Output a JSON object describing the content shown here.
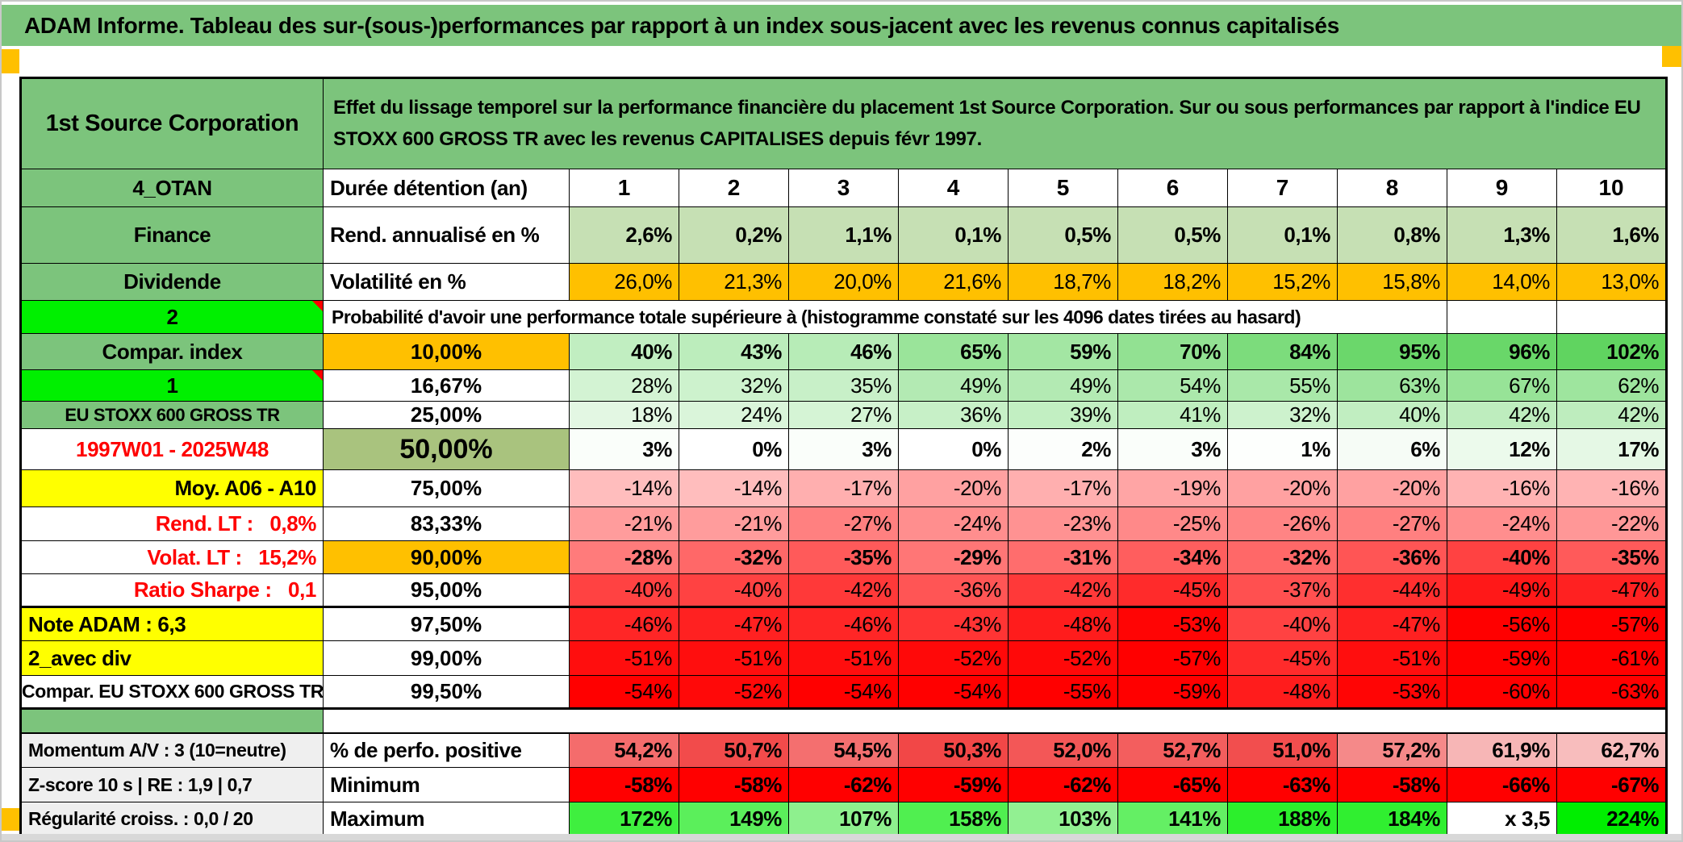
{
  "title": "ADAM Informe. Tableau des sur-(sous-)performances par rapport à un index sous-jacent avec les revenus connus capitalisés",
  "header": {
    "company": "1st Source Corporation",
    "description": "Effet du lissage temporel sur la performance financière du placement 1st Source Corporation. Sur ou sous performances par rapport à l'indice EU STOXX 600 GROSS TR avec les revenus CAPITALISES depuis févr 1997."
  },
  "rows": [
    {
      "id": "cols",
      "type": "header",
      "a": {
        "text": "4_OTAN",
        "bg": "green"
      },
      "b": {
        "text": "Durée détention (an)",
        "kind": "label"
      },
      "cells": [
        "1",
        "2",
        "3",
        "4",
        "5",
        "6",
        "7",
        "8",
        "9",
        "10"
      ]
    },
    {
      "id": "rend",
      "type": "lightgreen",
      "bold": true,
      "a": {
        "text": "Finance",
        "bg": "green"
      },
      "b": {
        "text": "Rend. annualisé en %",
        "kind": "label"
      },
      "cells": [
        "2,6%",
        "0,2%",
        "1,1%",
        "0,1%",
        "0,5%",
        "0,5%",
        "0,1%",
        "0,8%",
        "1,3%",
        "1,6%"
      ]
    },
    {
      "id": "vol",
      "type": "orange",
      "a": {
        "text": "Dividende",
        "bg": "green"
      },
      "b": {
        "text": "Volatilité en %",
        "kind": "label"
      },
      "cells": [
        "26,0%",
        "21,3%",
        "20,0%",
        "21,6%",
        "18,7%",
        "18,2%",
        "15,2%",
        "15,8%",
        "14,0%",
        "13,0%"
      ]
    },
    {
      "id": "prob",
      "a": {
        "text": "2",
        "bg": "bright",
        "marker": true
      },
      "merged": {
        "text": "Probabilité d'avoir une performance totale supérieure à (histogramme constaté sur les 4096 dates tirées au hasard)",
        "span": 9,
        "tail": 2
      }
    },
    {
      "id": "p10",
      "type": "scale",
      "bold": true,
      "a": {
        "text": "Compar. index",
        "bg": "green"
      },
      "b": {
        "text": "10,00%",
        "kind": "pct",
        "bg": "orange"
      },
      "cells": [
        "40%",
        "43%",
        "46%",
        "65%",
        "59%",
        "70%",
        "84%",
        "95%",
        "96%",
        "102%"
      ]
    },
    {
      "id": "p16",
      "type": "scale",
      "a": {
        "text": "1",
        "bg": "bright",
        "marker": true
      },
      "b": {
        "text": "16,67%",
        "kind": "pct"
      },
      "cells": [
        "28%",
        "32%",
        "35%",
        "49%",
        "49%",
        "54%",
        "55%",
        "63%",
        "67%",
        "62%"
      ]
    },
    {
      "id": "p25",
      "type": "scale",
      "a": {
        "text": "EU STOXX 600 GROSS TR",
        "bg": "green",
        "small": true
      },
      "b": {
        "text": "25,00%",
        "kind": "pct"
      },
      "cells": [
        "18%",
        "24%",
        "27%",
        "36%",
        "39%",
        "41%",
        "32%",
        "40%",
        "42%",
        "42%"
      ]
    },
    {
      "id": "p50",
      "type": "scale",
      "bold": true,
      "a": {
        "text": "1997W01 - 2025W48",
        "color": "red"
      },
      "b": {
        "text": "50,00%",
        "kind": "pct",
        "bg": "olive",
        "big": true
      },
      "cells": [
        "3%",
        "0%",
        "3%",
        "0%",
        "2%",
        "3%",
        "1%",
        "6%",
        "12%",
        "17%"
      ]
    },
    {
      "id": "p75",
      "type": "scale",
      "a": {
        "text": "Moy. A06 - A10",
        "bg": "yellow",
        "align": "right"
      },
      "b": {
        "text": "75,00%",
        "kind": "pct"
      },
      "cells": [
        "-14%",
        "-14%",
        "-17%",
        "-20%",
        "-17%",
        "-19%",
        "-20%",
        "-20%",
        "-16%",
        "-16%"
      ]
    },
    {
      "id": "p83",
      "type": "scale",
      "a": {
        "text": "Rend. LT :   0,8%",
        "color": "red",
        "align": "right"
      },
      "b": {
        "text": "83,33%",
        "kind": "pct"
      },
      "cells": [
        "-21%",
        "-21%",
        "-27%",
        "-24%",
        "-23%",
        "-25%",
        "-26%",
        "-27%",
        "-24%",
        "-22%"
      ]
    },
    {
      "id": "p90",
      "type": "scale",
      "bold": true,
      "a": {
        "text": "Volat. LT :   15,2%",
        "color": "red",
        "align": "right"
      },
      "b": {
        "text": "90,00%",
        "kind": "pct",
        "bg": "orange"
      },
      "cells": [
        "-28%",
        "-32%",
        "-35%",
        "-29%",
        "-31%",
        "-34%",
        "-32%",
        "-36%",
        "-40%",
        "-35%"
      ]
    },
    {
      "id": "p95",
      "type": "scale",
      "tb": true,
      "a": {
        "text": "Ratio Sharpe :   0,1",
        "color": "red",
        "align": "right"
      },
      "b": {
        "text": "95,00%",
        "kind": "pct"
      },
      "cells": [
        "-40%",
        "-40%",
        "-42%",
        "-36%",
        "-42%",
        "-45%",
        "-37%",
        "-44%",
        "-49%",
        "-47%"
      ]
    },
    {
      "id": "p975",
      "type": "scale",
      "a": {
        "text": "Note ADAM : 6,3",
        "bg": "yellow",
        "align": "left"
      },
      "b": {
        "text": "97,50%",
        "kind": "pct"
      },
      "cells": [
        "-46%",
        "-47%",
        "-46%",
        "-43%",
        "-48%",
        "-53%",
        "-40%",
        "-47%",
        "-56%",
        "-57%"
      ]
    },
    {
      "id": "p99",
      "type": "scale",
      "a": {
        "text": "2_avec div",
        "bg": "yellow",
        "align": "left"
      },
      "b": {
        "text": "99,00%",
        "kind": "pct"
      },
      "cells": [
        "-51%",
        "-51%",
        "-51%",
        "-52%",
        "-52%",
        "-57%",
        "-45%",
        "-51%",
        "-59%",
        "-61%"
      ]
    },
    {
      "id": "p995",
      "type": "scale",
      "tb": true,
      "a": {
        "text": "Compar. EU STOXX 600 GROSS TR",
        "xsmall": true
      },
      "b": {
        "text": "99,50%",
        "kind": "pct"
      },
      "cells": [
        "-54%",
        "-52%",
        "-54%",
        "-54%",
        "-55%",
        "-59%",
        "-48%",
        "-53%",
        "-60%",
        "-63%"
      ]
    },
    {
      "id": "spacer",
      "a": {
        "text": "",
        "bg": "green"
      }
    },
    {
      "id": "perf",
      "type": "posperf",
      "bold": true,
      "tt": true,
      "a": {
        "text": "Momentum A/V : 3 (10=neutre)",
        "bg": "gray",
        "align": "left",
        "xsmall": true
      },
      "b": {
        "text": "% de perfo. positive",
        "kind": "label"
      },
      "cells": [
        "54,2%",
        "50,7%",
        "54,5%",
        "50,3%",
        "52,0%",
        "52,7%",
        "51,0%",
        "57,2%",
        "61,9%",
        "62,7%"
      ]
    },
    {
      "id": "min",
      "type": "minrow",
      "bold": true,
      "a": {
        "text": "Z-score 10 s | RE : 1,9 | 0,7",
        "bg": "gray",
        "align": "left",
        "xsmall": true
      },
      "b": {
        "text": "Minimum",
        "kind": "label"
      },
      "cells": [
        "-58%",
        "-58%",
        "-62%",
        "-59%",
        "-62%",
        "-65%",
        "-63%",
        "-58%",
        "-66%",
        "-67%"
      ]
    },
    {
      "id": "max",
      "type": "maxrow",
      "bold": true,
      "a": {
        "text": "Régularité croiss. : 0,0 / 20",
        "bg": "gray",
        "align": "left",
        "xsmall": true
      },
      "b": {
        "text": "Maximum",
        "kind": "label"
      },
      "cells": [
        "172%",
        "149%",
        "107%",
        "158%",
        "103%",
        "141%",
        "188%",
        "184%",
        "x 3,5",
        "224%"
      ]
    }
  ],
  "colors": {
    "header_green": "#7CC47C",
    "bright_green": "#00F000",
    "comment_red": "#FF0000",
    "orange": "#FFC000",
    "yellow": "#FFFF00",
    "light_green": "#C6E0B4",
    "olive_green": "#A9C37E",
    "label_gray": "#EFEFEF",
    "scale_green_max": "#60D460",
    "scale_red_max": "#FF0000",
    "perf_red_dark": "#F24444",
    "perf_red_light": "#F8C0C0",
    "min_red": "#FF0000",
    "max_green_light": "#96F096",
    "max_green_dark": "#00EE00",
    "red_text": "#FF0000",
    "window_edge": "#D8D8D8",
    "tick_orange": "#FFC000"
  }
}
